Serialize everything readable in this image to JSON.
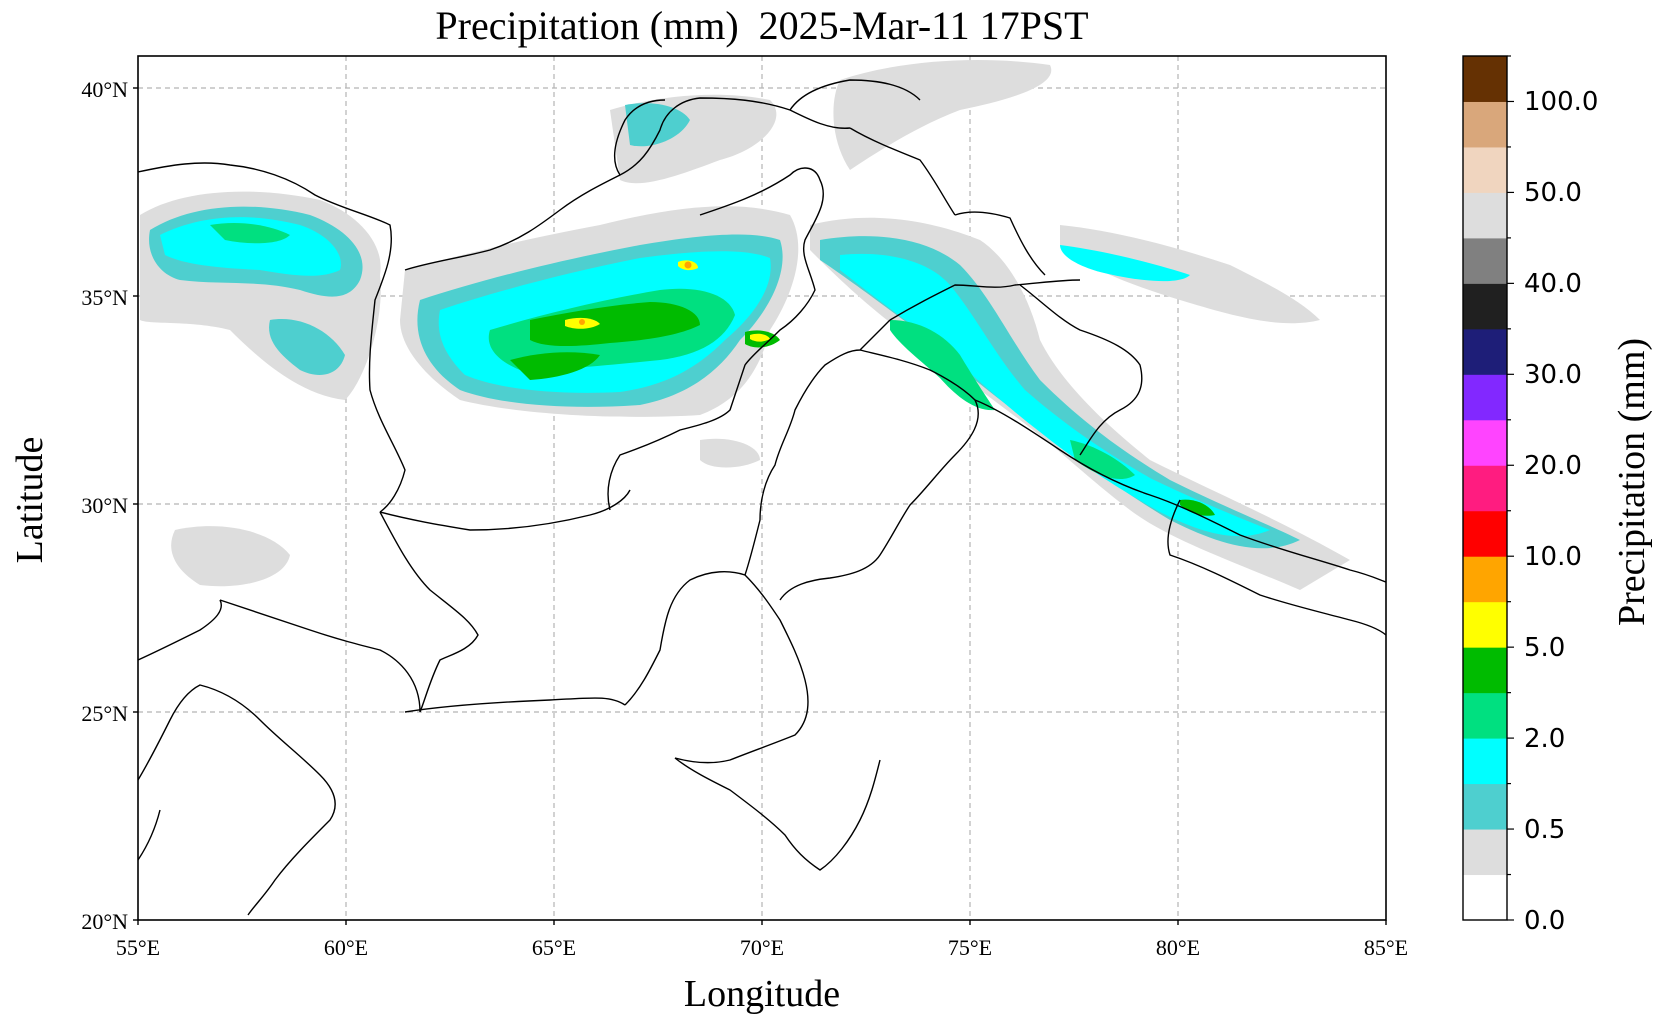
{
  "title": "Precipitation (mm)  2025-Mar-11 17PST",
  "xlabel": "Longitude",
  "ylabel": "Latitude",
  "colorbar": {
    "title": "Precipitation (mm)",
    "tick_labels": [
      "0.0",
      "0.5",
      "2.0",
      "5.0",
      "10.0",
      "20.0",
      "30.0",
      "40.0",
      "50.0",
      "100.0"
    ],
    "colors": [
      "#ffffff",
      "#dddddd",
      "#4ecfcf",
      "#00ffff",
      "#00e080",
      "#00bb00",
      "#ffff00",
      "#ffa500",
      "#ff0000",
      "#ff1c80",
      "#ff44ff",
      "#8228ff",
      "#1e1e78",
      "#202020",
      "#808080",
      "#dddddd",
      "#f0d5bf",
      "#d9a77b",
      "#653103"
    ]
  },
  "axes": {
    "lon_range": [
      55,
      85
    ],
    "lat_range": [
      20,
      41
    ],
    "lon_ticks": [
      "55°E",
      "60°E",
      "65°E",
      "70°E",
      "75°E",
      "80°E",
      "85°E"
    ],
    "lat_ticks": [
      "20°N",
      "25°N",
      "30°N",
      "35°N",
      "40°N"
    ],
    "gridlines": "dashed",
    "projection": "PlateCarree"
  }
}
